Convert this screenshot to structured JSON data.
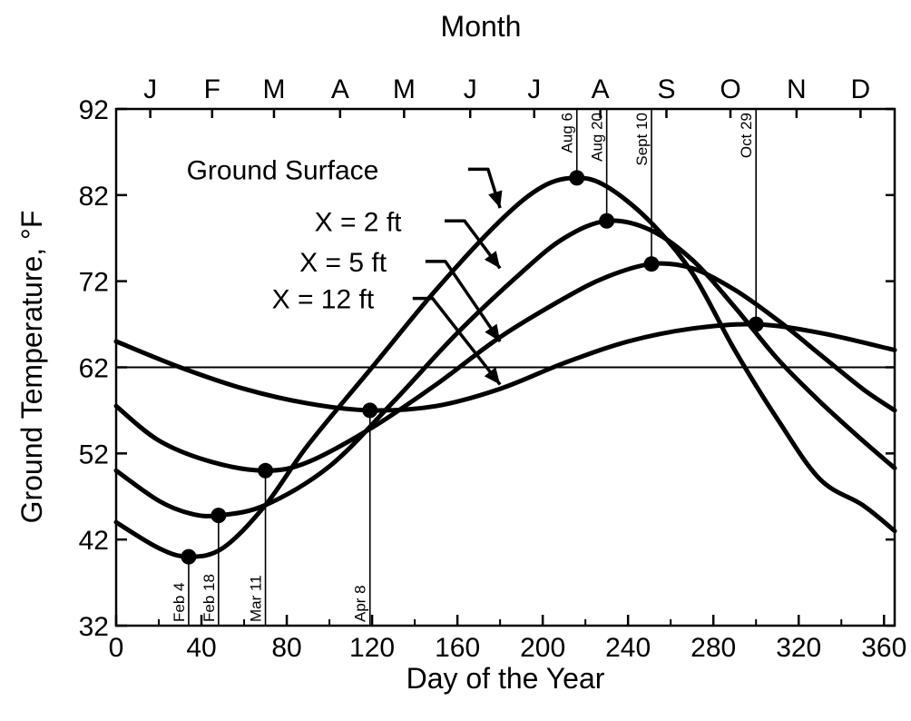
{
  "chart_data": {
    "type": "line",
    "title": "",
    "top_axis_title": "Month",
    "xlabel": "Day of the Year",
    "ylabel": "Ground Temperature, °F",
    "xlim": [
      0,
      365
    ],
    "ylim": [
      32,
      92
    ],
    "xticks": [
      0,
      40,
      80,
      120,
      160,
      200,
      240,
      280,
      320,
      360
    ],
    "yticks": [
      32,
      42,
      52,
      62,
      72,
      82,
      92
    ],
    "months": [
      {
        "label": "J",
        "day": 16
      },
      {
        "label": "F",
        "day": 45
      },
      {
        "label": "M",
        "day": 74
      },
      {
        "label": "A",
        "day": 105
      },
      {
        "label": "M",
        "day": 135
      },
      {
        "label": "J",
        "day": 166
      },
      {
        "label": "J",
        "day": 196
      },
      {
        "label": "A",
        "day": 227
      },
      {
        "label": "S",
        "day": 258
      },
      {
        "label": "O",
        "day": 288
      },
      {
        "label": "N",
        "day": 319
      },
      {
        "label": "D",
        "day": 349
      }
    ],
    "reference_line_y": 62,
    "series": [
      {
        "name": "Ground Surface",
        "x": [
          0,
          20,
          34,
          50,
          70,
          90,
          120,
          150,
          180,
          200,
          216,
          230,
          250,
          270,
          290,
          310,
          330,
          350,
          365
        ],
        "y": [
          44,
          41,
          40,
          41,
          46,
          53,
          62,
          71,
          79,
          83,
          84,
          83,
          79,
          73,
          64,
          56,
          49,
          46,
          43
        ]
      },
      {
        "name": "X = 2 ft",
        "x": [
          0,
          20,
          35,
          48,
          70,
          100,
          130,
          160,
          190,
          210,
          230,
          250,
          270,
          290,
          310,
          330,
          350,
          365
        ],
        "y": [
          50,
          46.5,
          45,
          44.8,
          46,
          50.5,
          58,
          66,
          73,
          77,
          79,
          78,
          74.5,
          69,
          63,
          58,
          53.5,
          50.3
        ]
      },
      {
        "name": "X = 5 ft",
        "x": [
          0,
          20,
          45,
          70,
          90,
          120,
          150,
          180,
          210,
          230,
          251,
          270,
          290,
          310,
          330,
          350,
          365
        ],
        "y": [
          57.5,
          53.5,
          51,
          50,
          51,
          55,
          60,
          65.5,
          70,
          72.5,
          74,
          73.5,
          71,
          67.5,
          63.5,
          59.5,
          57
        ]
      },
      {
        "name": "X = 12 ft",
        "x": [
          0,
          30,
          60,
          90,
          119,
          150,
          180,
          210,
          240,
          270,
          300,
          330,
          365
        ],
        "y": [
          65,
          62,
          59.5,
          57.8,
          57,
          57.5,
          59.5,
          62.5,
          65,
          66.5,
          67,
          66,
          64
        ]
      }
    ],
    "markers": [
      {
        "day": 34,
        "temp": 40,
        "label": "Feb 4",
        "label_pos": "below"
      },
      {
        "day": 48,
        "temp": 44.8,
        "label": "Feb 18",
        "label_pos": "below"
      },
      {
        "day": 70,
        "temp": 50,
        "label": "Mar 11",
        "label_pos": "below"
      },
      {
        "day": 119,
        "temp": 57,
        "label": "Apr 8",
        "label_pos": "below"
      },
      {
        "day": 216,
        "temp": 84,
        "label": "Aug 6",
        "label_pos": "above"
      },
      {
        "day": 230,
        "temp": 79,
        "label": "Aug 20",
        "label_pos": "above"
      },
      {
        "day": 251,
        "temp": 74,
        "label": "Sept 10",
        "label_pos": "above"
      },
      {
        "day": 300,
        "temp": 67,
        "label": "Oct 29",
        "label_pos": "above"
      }
    ],
    "annotations": [
      {
        "text": "Ground Surface",
        "series": "Ground Surface",
        "text_day": 33,
        "text_temp": 85,
        "arrow_via": [
          165,
          85
        ],
        "arrow_to": [
          180,
          80.5
        ]
      },
      {
        "text": "X = 2 ft",
        "series": "X = 2 ft",
        "text_day": 93,
        "text_temp": 79,
        "arrow_via": [
          154,
          79
        ],
        "arrow_to": [
          180,
          73.5
        ]
      },
      {
        "text": "X = 5 ft",
        "series": "X = 5 ft",
        "text_day": 86,
        "text_temp": 74.3,
        "arrow_via": [
          145,
          74.3
        ],
        "arrow_to": [
          180,
          65
        ]
      },
      {
        "text": "X = 12 ft",
        "series": "X = 12 ft",
        "text_day": 73,
        "text_temp": 70,
        "arrow_via": [
          139,
          70
        ],
        "arrow_to": [
          180,
          60
        ]
      }
    ]
  }
}
